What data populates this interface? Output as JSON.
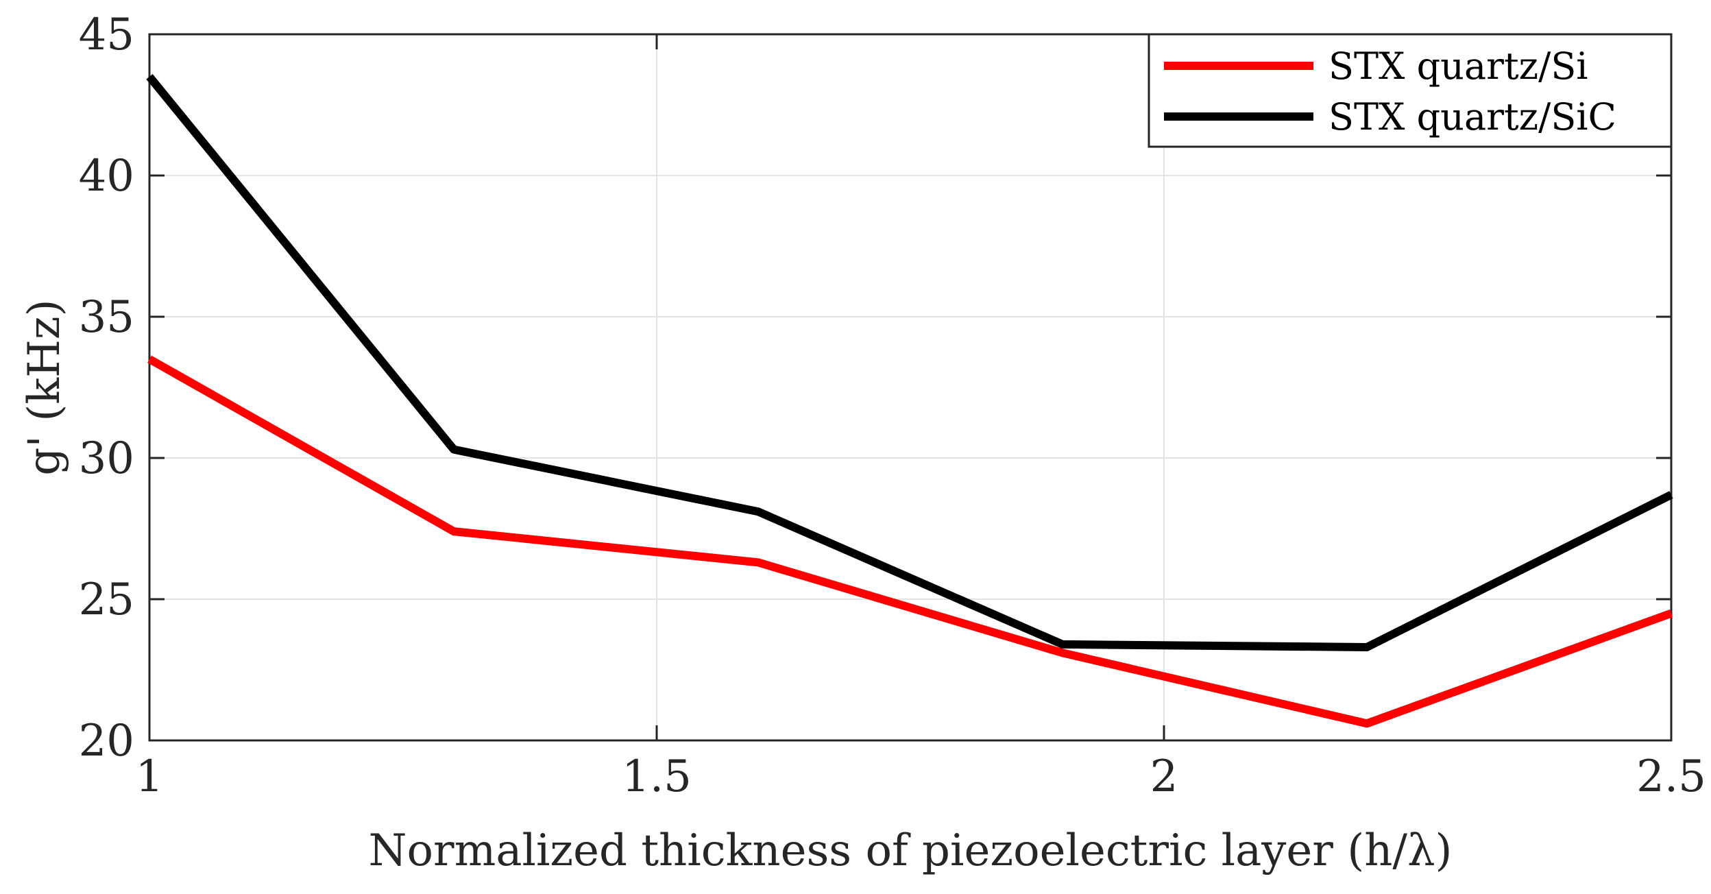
{
  "chart_data": {
    "type": "line",
    "title": "",
    "xlabel": "Normalized thickness of piezoelectric layer (h/λ)",
    "ylabel": "g' (kHz)",
    "xlim": [
      1,
      2.5
    ],
    "ylim": [
      20,
      45
    ],
    "xticks": [
      1,
      1.5,
      2,
      2.5
    ],
    "xtick_labels": [
      "1",
      "1.5",
      "2",
      "2.5"
    ],
    "yticks": [
      20,
      25,
      30,
      35,
      40,
      45
    ],
    "ytick_labels": [
      "20",
      "25",
      "30",
      "35",
      "40",
      "45"
    ],
    "grid": true,
    "legend_position": "top-right",
    "x": [
      1.0,
      1.3,
      1.6,
      1.9,
      2.2,
      2.5
    ],
    "series": [
      {
        "name": "STX quartz/Si",
        "color": "#ff0000",
        "values": [
          33.5,
          27.4,
          26.3,
          23.1,
          20.6,
          24.5
        ]
      },
      {
        "name": "STX quartz/SiC",
        "color": "#000000",
        "values": [
          43.5,
          30.3,
          28.1,
          23.4,
          23.3,
          28.7
        ]
      }
    ]
  }
}
